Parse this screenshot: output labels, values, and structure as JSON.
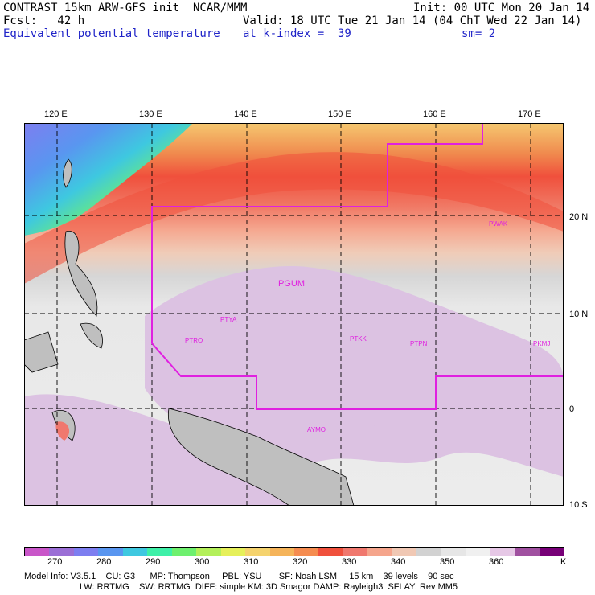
{
  "header": {
    "line1_left": "CONTRAST 15km ARW-GFS init  NCAR/MMM",
    "line1_right": "Init: 00 UTC Mon 20 Jan 14",
    "line2_left": "Fcst:   42 h",
    "line2_right": "Valid: 18 UTC Tue 21 Jan 14 (04 ChT Wed 22 Jan 14)",
    "line3_left": "Equivalent potential temperature",
    "line3_mid": "at k-index =  39",
    "line3_right": "sm= 2"
  },
  "axes": {
    "lon_labels": [
      "120 E",
      "130 E",
      "140 E",
      "150 E",
      "160 E",
      "170 E"
    ],
    "lat_labels": [
      "20 N",
      "10 N",
      "0",
      "10 S"
    ]
  },
  "stations": [
    {
      "id": "PWAK"
    },
    {
      "id": "PGUM"
    },
    {
      "id": "PTYA"
    },
    {
      "id": "PTRO"
    },
    {
      "id": "PTKK"
    },
    {
      "id": "PTPN"
    },
    {
      "id": "PKMJ"
    },
    {
      "id": "AYMO"
    }
  ],
  "colorbar": {
    "labels": [
      "270",
      "280",
      "290",
      "300",
      "310",
      "320",
      "330",
      "340",
      "350",
      "360"
    ],
    "unit": "K",
    "colors": [
      "#c956c9",
      "#9b6fd6",
      "#7d7ef0",
      "#5996f0",
      "#3ec8e0",
      "#3ef0a8",
      "#6ef06e",
      "#b4f05a",
      "#e6f05a",
      "#f5d36e",
      "#f5b45a",
      "#f58c50",
      "#f0503c",
      "#f0786e",
      "#f5a58c",
      "#f0c8b4",
      "#d2d2d2",
      "#e6e6e6",
      "#f0f0f0",
      "#e6c8e6",
      "#a050a0",
      "#780078"
    ]
  },
  "footer": {
    "line1": "Model Info: V3.5.1    CU: G3      MP: Thompson     PBL: YSU       SF: Noah LSM     15 km    39 levels    90 sec",
    "line2": "LW: RRTMG    SW: RRTMG  DIFF: simple KM: 3D Smagor DAMP: Rayleigh3  SFLAY: Rev MM5"
  }
}
